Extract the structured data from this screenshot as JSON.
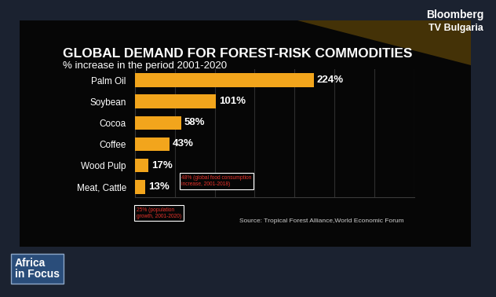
{
  "chart_data": {
    "type": "bar",
    "title": "GLOBAL DEMAND FOR FOREST-RISK COMMODITIES",
    "subtitle": "% increase in the period 2001-2020",
    "categories": [
      "Palm Oil",
      "Soybean",
      "Cocoa",
      "Coffee",
      "Wood Pulp",
      "Meat, Cattle"
    ],
    "values": [
      224,
      101,
      58,
      43,
      17,
      13
    ],
    "value_labels": [
      "224%",
      "101%",
      "58%",
      "43%",
      "17%",
      "13%"
    ],
    "color": "#f2a51c",
    "orientation": "horizontal",
    "data_labels": true,
    "xlim": [
      0,
      350
    ],
    "xticks": [
      0,
      50,
      100,
      150,
      200,
      250,
      300,
      350
    ],
    "grid": true,
    "tick_labels": "y",
    "annotations": [
      "48% (global food consumption increase, 2001-2018)",
      "25% (population growth, 2001-2020)"
    ],
    "source": "Source: Tropical Forest Alliance,World Economic Forum",
    "logo": [
      "Bloomberg",
      "TV Bulgaria"
    ],
    "program": "Africa in Focus"
  }
}
